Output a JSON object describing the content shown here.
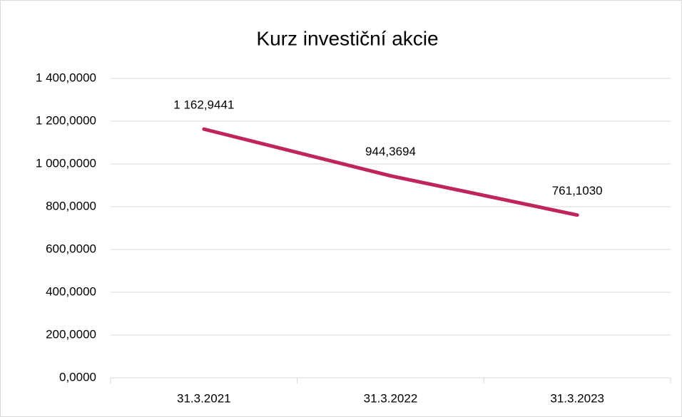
{
  "chart_data": {
    "type": "line",
    "title": "Kurz investiční akcie",
    "categories": [
      "31.3.2021",
      "31.3.2022",
      "31.3.2023"
    ],
    "values": [
      1162.9441,
      944.3694,
      761.103
    ],
    "value_labels": [
      "1 162,9441",
      "944,3694",
      "761,1030"
    ],
    "color": "#c0245c",
    "ylim": [
      0,
      1400
    ],
    "yticks": [
      {
        "value": 0,
        "label": "0,0000"
      },
      {
        "value": 200,
        "label": "200,0000"
      },
      {
        "value": 400,
        "label": "400,0000"
      },
      {
        "value": 600,
        "label": "600,0000"
      },
      {
        "value": 800,
        "label": "800,0000"
      },
      {
        "value": 1000,
        "label": "1 000,0000"
      },
      {
        "value": 1200,
        "label": "1 200,0000"
      },
      {
        "value": 1400,
        "label": "1 400,0000"
      }
    ],
    "grid": true
  }
}
